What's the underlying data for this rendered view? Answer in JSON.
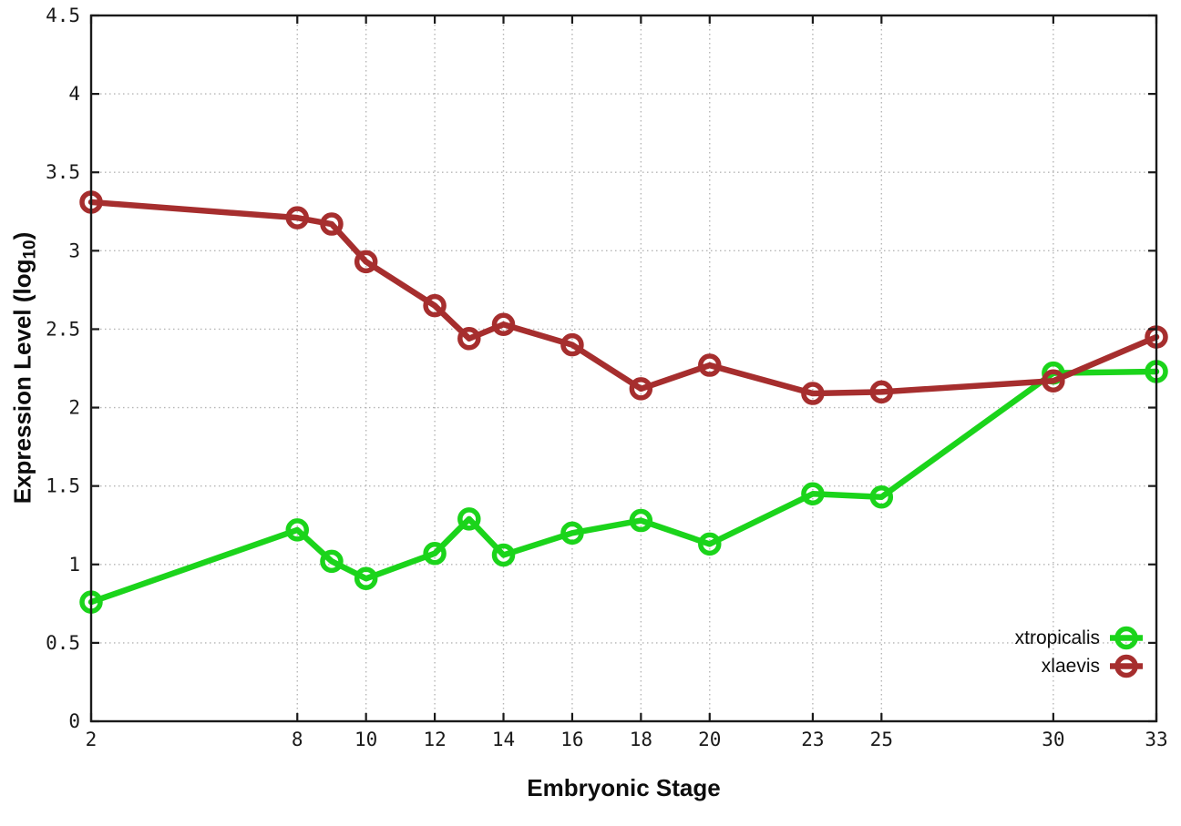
{
  "page": {
    "background": "#ffffff",
    "description": "Line chart of gene expression level across embryonic stages for two frog species"
  },
  "labels": {
    "x_title": "Embryonic Stage",
    "y_title_main": "Expression Level (log",
    "y_title_sub": "10",
    "y_title_end": ")"
  },
  "chart_data": {
    "type": "line",
    "title": "",
    "xlabel": "Embryonic Stage",
    "ylabel": "Expression Level (log10)",
    "xlim": [
      2,
      33
    ],
    "ylim": [
      0,
      4.5
    ],
    "grid": true,
    "grid_style": "dotted",
    "legend_position": "bottom-right-inside",
    "axis_color": "#1a1a1a",
    "grid_color": "#b5b5b5",
    "x_ticks": [
      2,
      8,
      10,
      12,
      14,
      16,
      18,
      20,
      23,
      25,
      30,
      33
    ],
    "x_tick_labels": [
      "2",
      "8",
      "10",
      "12",
      "14",
      "16",
      "18",
      "20",
      "23",
      "25",
      "30",
      "33"
    ],
    "y_ticks": [
      0,
      0.5,
      1,
      1.5,
      2,
      2.5,
      3,
      3.5,
      4,
      4.5
    ],
    "y_tick_labels": [
      "0",
      "0.5",
      "1",
      "1.5",
      "2",
      "2.5",
      "3",
      "3.5",
      "4",
      "4.5"
    ],
    "x": [
      2,
      8,
      9,
      10,
      12,
      13,
      14,
      16,
      18,
      20,
      23,
      25,
      30,
      33
    ],
    "series": [
      {
        "name": "xtropicalis",
        "color": "#1bd41b",
        "marker": "open-circle",
        "values": [
          0.76,
          1.22,
          1.02,
          0.91,
          1.07,
          1.29,
          1.06,
          1.2,
          1.28,
          1.13,
          1.45,
          1.43,
          2.22,
          2.23
        ]
      },
      {
        "name": "xlaevis",
        "color": "#a62e2e",
        "marker": "open-circle",
        "values": [
          3.31,
          3.21,
          3.17,
          2.93,
          2.65,
          2.44,
          2.53,
          2.4,
          2.12,
          2.27,
          2.09,
          2.1,
          2.17,
          2.45
        ]
      }
    ]
  }
}
